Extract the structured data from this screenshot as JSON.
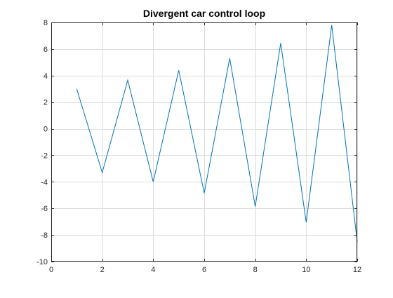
{
  "chart_data": {
    "type": "line",
    "title": "Divergent car control loop",
    "xlabel": "",
    "ylabel": "",
    "xlim": [
      0,
      12
    ],
    "ylim": [
      -10,
      8
    ],
    "xticks": [
      0,
      2,
      4,
      6,
      8,
      10,
      12
    ],
    "yticks": [
      -10,
      -8,
      -6,
      -4,
      -2,
      0,
      2,
      4,
      6,
      8
    ],
    "grid": true,
    "series": [
      {
        "color": "#0072BD",
        "x": [
          1,
          2,
          3,
          4,
          5,
          6,
          7,
          8,
          9,
          10,
          11,
          12
        ],
        "y": [
          3.0,
          -3.3,
          3.65,
          -4.0,
          4.4,
          -4.85,
          5.3,
          -5.85,
          6.45,
          -7.05,
          7.8,
          -8.5
        ]
      }
    ]
  }
}
